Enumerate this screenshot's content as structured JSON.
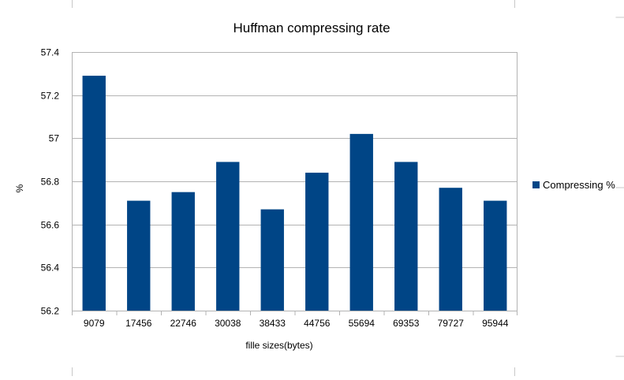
{
  "chart_data": {
    "type": "bar",
    "title": "Huffman compressing rate",
    "xlabel": "fille sizes(bytes)",
    "ylabel": "%",
    "categories": [
      "9079",
      "17456",
      "22746",
      "30038",
      "38433",
      "44756",
      "55694",
      "69353",
      "79727",
      "95944"
    ],
    "series": [
      {
        "name": "Compressing %",
        "color": "#004586",
        "values": [
          57.29,
          56.71,
          56.75,
          56.89,
          56.67,
          56.84,
          57.02,
          56.89,
          56.77,
          56.71
        ]
      }
    ],
    "ylim": [
      56.2,
      57.4
    ],
    "yticks": [
      "56.2",
      "56.4",
      "56.6",
      "56.8",
      "57",
      "57.2",
      "57.4"
    ],
    "grid": true,
    "legend_position": "right"
  }
}
